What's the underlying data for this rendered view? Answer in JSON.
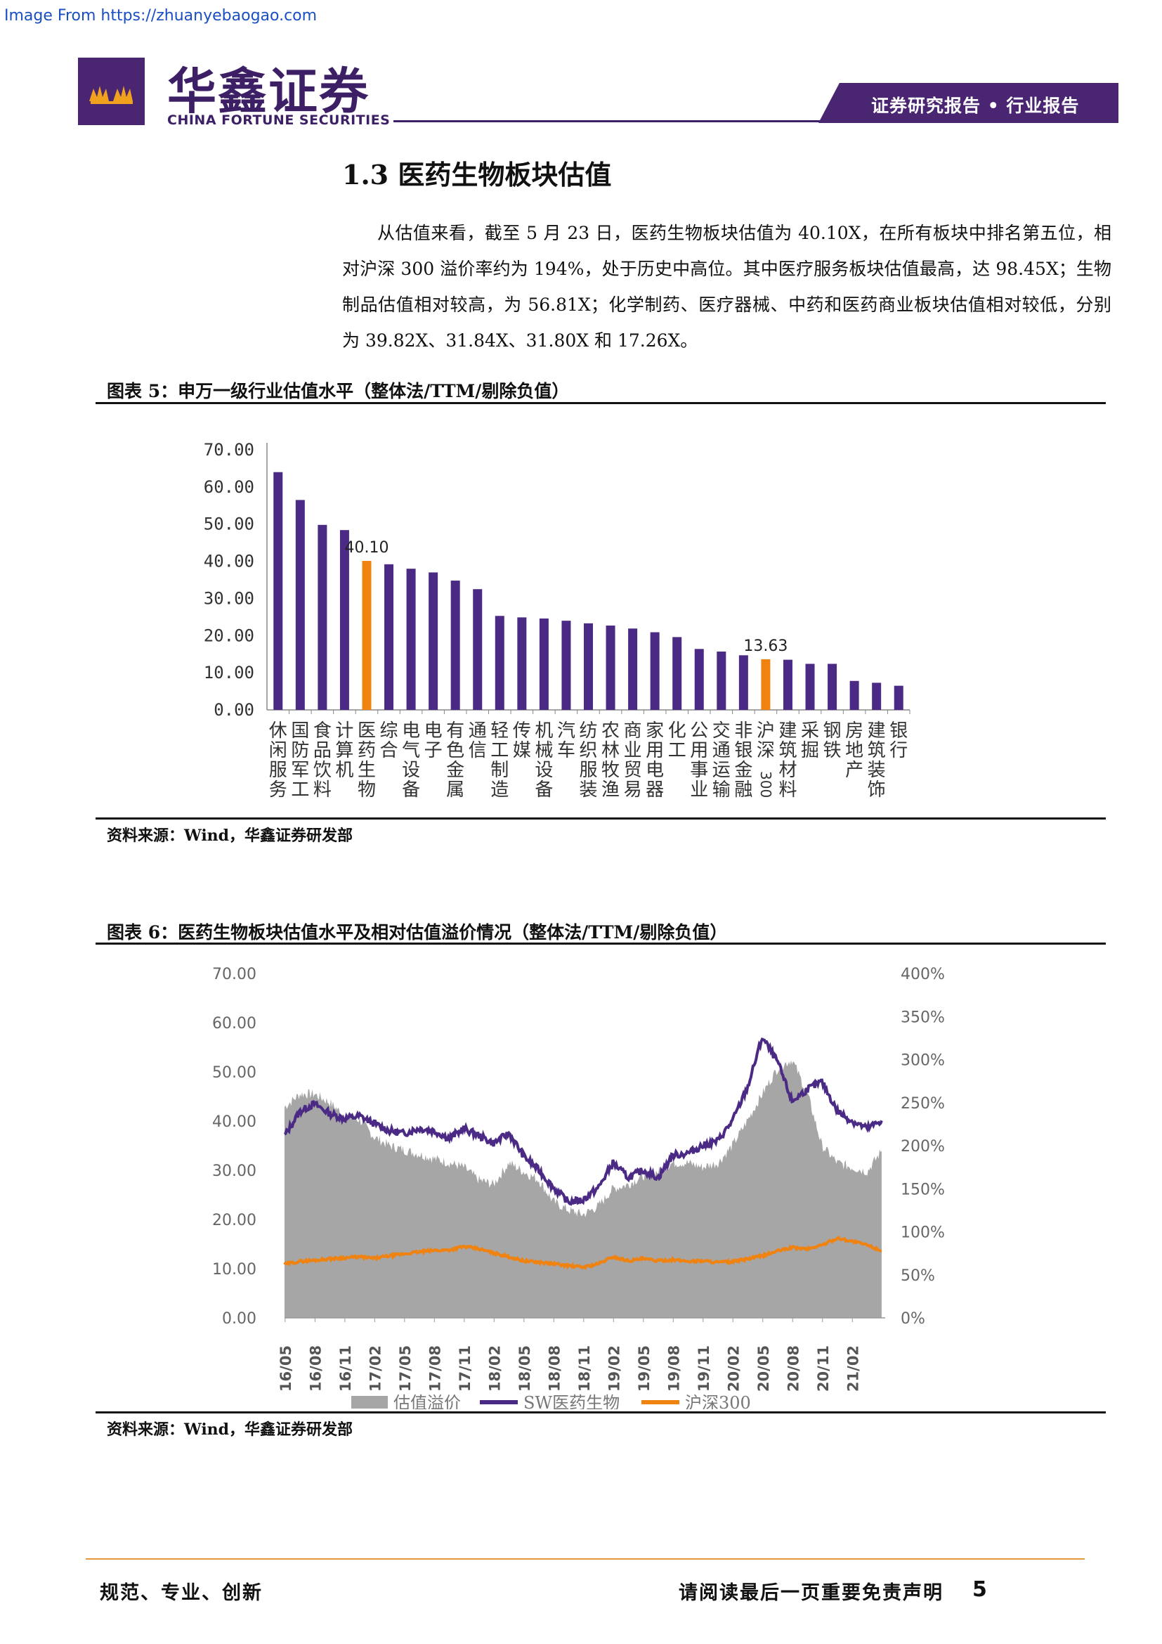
{
  "source_url": "Image From https://zhuanyebaogao.com",
  "header": {
    "company_cn": "华鑫证券",
    "company_en": "CHINA FORTUNE SECURITIES",
    "report_tag": "证券研究报告 • 行业报告"
  },
  "section": {
    "heading": "1.3 医药生物板块估值",
    "paragraph": "从估值来看，截至 5 月 23 日，医药生物板块估值为 40.10X，在所有板块中排名第五位，相对沪深 300 溢价率约为 194%，处于历史中高位。其中医疗服务板块估值最高，达 98.45X；生物制品估值相对较高，为 56.81X；化学制药、医疗器械、中药和医药商业板块估值相对较低，分别为 39.82X、31.84X、31.80X 和 17.26X。"
  },
  "figure5": {
    "title": "图表 5：申万一级行业估值水平（整体法/TTM/剔除负值）",
    "source": "资料来源：Wind，华鑫证券研发部"
  },
  "figure6": {
    "title": "图表 6：医药生物板块估值水平及相对估值溢价情况（整体法/TTM/剔除负值）",
    "source": "资料来源：Wind，华鑫证券研发部"
  },
  "colors": {
    "purple": "#4b2a85",
    "orange": "#f0820f",
    "gray": "#a6a6a6",
    "brand": "#4a2672"
  },
  "chart_data": [
    {
      "type": "bar",
      "categories": [
        "休闲服务",
        "国防军工",
        "食品饮料",
        "计算机",
        "医药生物",
        "综合",
        "电气设备",
        "电子",
        "有色金属",
        "通信",
        "轻工制造",
        "传媒",
        "机械设备",
        "汽车",
        "纺织服装",
        "农林牧渔",
        "商业贸易",
        "家用电器",
        "化工",
        "公用事业",
        "交通运输",
        "非银金融",
        "沪深300",
        "建筑材料",
        "采掘",
        "钢铁",
        "房地产",
        "建筑装饰",
        "银行"
      ],
      "values": [
        64.0,
        56.5,
        49.8,
        48.4,
        40.1,
        39.2,
        38.0,
        37.0,
        34.8,
        32.5,
        25.3,
        24.9,
        24.6,
        24.0,
        23.3,
        22.7,
        21.9,
        20.9,
        19.6,
        16.4,
        15.7,
        14.7,
        13.63,
        13.5,
        12.4,
        12.4,
        7.8,
        7.3,
        6.5
      ],
      "highlight": [
        "医药生物",
        "沪深300"
      ],
      "data_labels": {
        "医药生物": "40.10",
        "沪深300": "13.63"
      },
      "yticks": [
        "0.00",
        "10.00",
        "20.00",
        "30.00",
        "40.00",
        "50.00",
        "60.00",
        "70.00"
      ],
      "ylim": [
        0,
        70
      ]
    },
    {
      "type": "area",
      "x_ticks": [
        "16/05",
        "16/08",
        "16/11",
        "17/02",
        "17/05",
        "17/08",
        "17/11",
        "18/02",
        "18/05",
        "18/08",
        "18/11",
        "19/02",
        "19/05",
        "19/08",
        "19/11",
        "20/02",
        "20/05",
        "20/08",
        "20/11",
        "21/02"
      ],
      "y_left_ticks": [
        "0.00",
        "10.00",
        "20.00",
        "30.00",
        "40.00",
        "50.00",
        "60.00",
        "70.00"
      ],
      "y_right_ticks": [
        "0%",
        "50%",
        "100%",
        "150%",
        "200%",
        "250%",
        "300%",
        "350%",
        "400%"
      ],
      "y_left_lim": [
        0,
        70
      ],
      "y_right_lim": [
        0,
        4
      ],
      "legend": [
        "估值溢价",
        "SW医药生物",
        "沪深300"
      ],
      "legend_position": "bottom",
      "series": [
        {
          "name": "估值溢价",
          "axis": "right",
          "x": [
            2016.37,
            2016.5,
            2016.62,
            2016.75,
            2016.87,
            2017.0,
            2017.12,
            2017.25,
            2017.37,
            2017.5,
            2017.62,
            2017.75,
            2017.87,
            2018.0,
            2018.12,
            2018.25,
            2018.37,
            2018.5,
            2018.62,
            2018.75,
            2018.87,
            2019.0,
            2019.12,
            2019.25,
            2019.37,
            2019.5,
            2019.62,
            2019.75,
            2019.87,
            2020.0,
            2020.12,
            2020.25,
            2020.37,
            2020.5,
            2020.62,
            2020.75,
            2020.87,
            2021.0,
            2021.12,
            2021.25,
            2021.37
          ],
          "values": [
            2.45,
            2.6,
            2.6,
            2.5,
            2.35,
            2.3,
            2.1,
            2.0,
            1.95,
            1.9,
            1.85,
            1.8,
            1.75,
            1.6,
            1.55,
            1.8,
            1.7,
            1.6,
            1.35,
            1.25,
            1.2,
            1.3,
            1.5,
            1.55,
            1.65,
            1.7,
            1.8,
            1.8,
            1.75,
            1.8,
            2.0,
            2.3,
            2.6,
            2.9,
            3.0,
            2.6,
            2.0,
            1.8,
            1.75,
            1.7,
            1.94
          ]
        },
        {
          "name": "SW医药生物",
          "axis": "left",
          "x": [
            2016.37,
            2016.5,
            2016.62,
            2016.75,
            2016.87,
            2017.0,
            2017.12,
            2017.25,
            2017.37,
            2017.5,
            2017.62,
            2017.75,
            2017.87,
            2018.0,
            2018.12,
            2018.25,
            2018.37,
            2018.5,
            2018.62,
            2018.75,
            2018.87,
            2019.0,
            2019.12,
            2019.25,
            2019.37,
            2019.5,
            2019.62,
            2019.75,
            2019.87,
            2020.0,
            2020.12,
            2020.25,
            2020.37,
            2020.5,
            2020.62,
            2020.75,
            2020.87,
            2021.0,
            2021.12,
            2021.25,
            2021.37
          ],
          "values": [
            37.0,
            42.0,
            43.5,
            41.5,
            40.5,
            41.0,
            39.5,
            38.0,
            37.5,
            38.5,
            38.0,
            36.5,
            38.5,
            37.0,
            35.5,
            37.5,
            33.0,
            30.0,
            26.5,
            23.5,
            24.0,
            26.5,
            31.5,
            28.5,
            30.0,
            28.5,
            33.0,
            33.5,
            35.0,
            36.0,
            40.0,
            47.0,
            57.0,
            52.0,
            44.0,
            46.5,
            48.0,
            42.0,
            40.0,
            38.5,
            40.1
          ]
        },
        {
          "name": "沪深300",
          "axis": "left",
          "x": [
            2016.37,
            2016.5,
            2016.62,
            2016.75,
            2016.87,
            2017.0,
            2017.12,
            2017.25,
            2017.37,
            2017.5,
            2017.62,
            2017.75,
            2017.87,
            2018.0,
            2018.12,
            2018.25,
            2018.37,
            2018.5,
            2018.62,
            2018.75,
            2018.87,
            2019.0,
            2019.12,
            2019.25,
            2019.37,
            2019.5,
            2019.62,
            2019.75,
            2019.87,
            2020.0,
            2020.12,
            2020.25,
            2020.37,
            2020.5,
            2020.62,
            2020.75,
            2020.87,
            2021.0,
            2021.12,
            2021.25,
            2021.37
          ],
          "values": [
            10.9,
            11.5,
            11.7,
            12.0,
            12.2,
            12.4,
            12.1,
            12.6,
            13.0,
            13.4,
            13.7,
            13.8,
            14.5,
            14.0,
            13.2,
            12.4,
            11.6,
            11.3,
            11.0,
            10.6,
            10.3,
            11.0,
            12.4,
            11.6,
            12.0,
            11.6,
            11.8,
            11.5,
            11.6,
            11.3,
            11.4,
            12.0,
            12.6,
            13.6,
            14.3,
            14.0,
            14.8,
            16.2,
            15.6,
            14.8,
            13.63
          ]
        }
      ]
    }
  ]
}
